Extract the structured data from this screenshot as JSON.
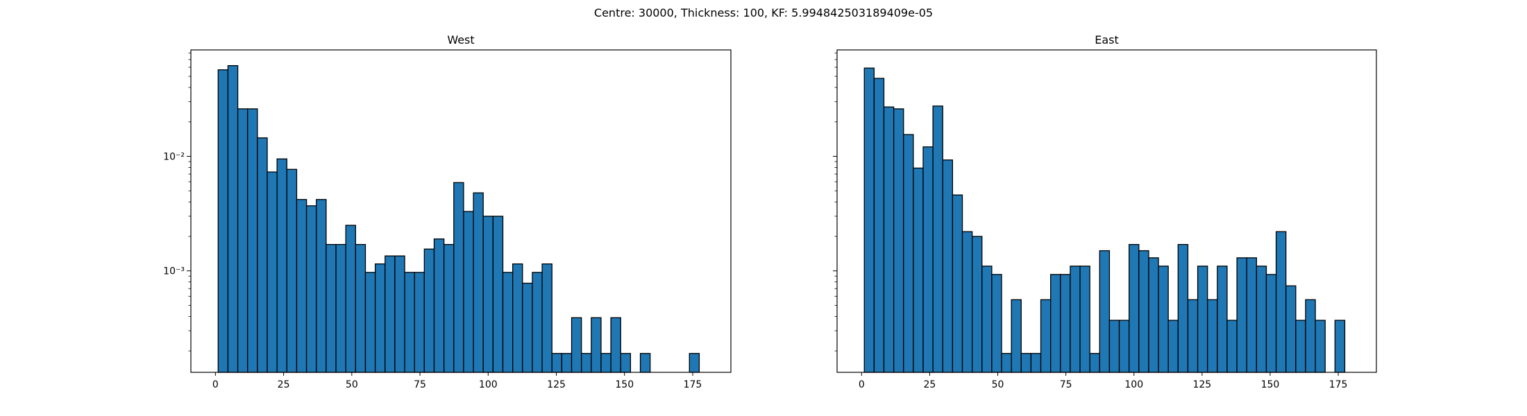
{
  "suptitle": "Centre: 30000, Thickness: 100, KF: 5.994842503189409e-05",
  "chart_data": [
    {
      "type": "bar",
      "title": "West",
      "xlabel": "",
      "ylabel": "",
      "yscale": "log",
      "xlim": [
        -9,
        189
      ],
      "ylim": [
        0.00013,
        0.085
      ],
      "xticks": [
        0,
        25,
        50,
        75,
        100,
        125,
        150,
        175
      ],
      "xtick_labels": [
        "0",
        "25",
        "50",
        "75",
        "100",
        "125",
        "150",
        "175"
      ],
      "yticks": [
        0.01,
        0.001
      ],
      "ytick_labels": [
        "10⁻²",
        "10⁻³"
      ],
      "grid": false,
      "bin_width": 3.6,
      "bin_start": 1,
      "color": "#1f77b4",
      "edgecolor": "#000000",
      "values": [
        0.057,
        0.062,
        0.026,
        0.026,
        0.0145,
        0.0073,
        0.0095,
        0.0077,
        0.0042,
        0.0037,
        0.0042,
        0.0017,
        0.0017,
        0.0025,
        0.0017,
        0.00097,
        0.00115,
        0.00135,
        0.00135,
        0.00097,
        0.00097,
        0.00155,
        0.0019,
        0.0017,
        0.0059,
        0.0033,
        0.0048,
        0.003,
        0.003,
        0.00097,
        0.00115,
        0.00078,
        0.00097,
        0.00115,
        0.00019,
        0.00019,
        0.00039,
        0.00019,
        0.00039,
        0.00019,
        0.00039,
        0.00019,
        0,
        0.00019,
        0,
        0,
        0,
        0,
        0.00019
      ]
    },
    {
      "type": "bar",
      "title": "East",
      "xlabel": "",
      "ylabel": "",
      "yscale": "log",
      "xlim": [
        -9,
        189
      ],
      "ylim": [
        0.00013,
        0.085
      ],
      "xticks": [
        0,
        25,
        50,
        75,
        100,
        125,
        150,
        175
      ],
      "xtick_labels": [
        "0",
        "25",
        "50",
        "75",
        "100",
        "125",
        "150",
        "175"
      ],
      "yticks": [
        0.01,
        0.001
      ],
      "ytick_labels": [
        "",
        ""
      ],
      "grid": false,
      "bin_width": 3.6,
      "bin_start": 1,
      "color": "#1f77b4",
      "edgecolor": "#000000",
      "values": [
        0.059,
        0.048,
        0.027,
        0.026,
        0.0155,
        0.0079,
        0.0121,
        0.0275,
        0.0093,
        0.0046,
        0.0022,
        0.002,
        0.0011,
        0.00093,
        0.00019,
        0.00056,
        0.00019,
        0.00019,
        0.00056,
        0.00093,
        0.00093,
        0.0011,
        0.0011,
        0.00019,
        0.0015,
        0.00037,
        0.00037,
        0.0017,
        0.0015,
        0.0013,
        0.0011,
        0.00037,
        0.0017,
        0.00056,
        0.0011,
        0.00056,
        0.0011,
        0.00037,
        0.0013,
        0.0013,
        0.0011,
        0.00093,
        0.0022,
        0.00074,
        0.00037,
        0.00056,
        0.00037,
        0,
        0.00037
      ]
    }
  ]
}
